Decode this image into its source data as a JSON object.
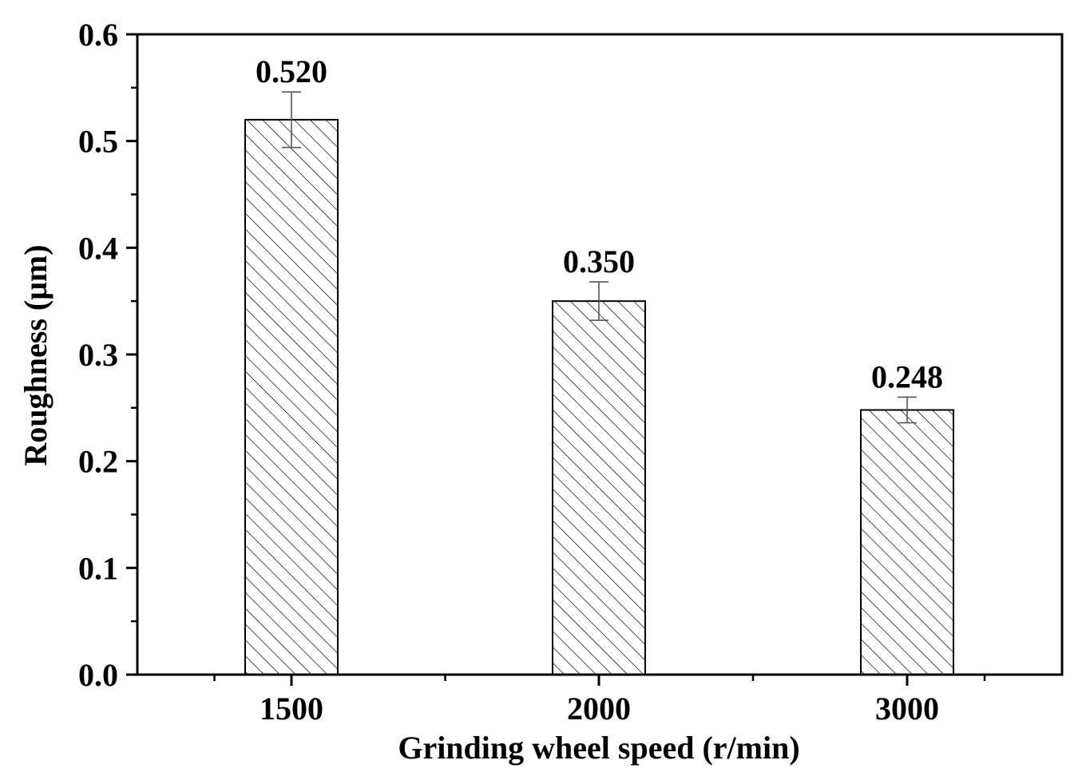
{
  "chart_data": {
    "type": "bar",
    "title": "",
    "xlabel": "Grinding wheel speed (r/min)",
    "ylabel": "Roughness (μm)",
    "categories": [
      "1500",
      "2000",
      "3000"
    ],
    "values": [
      0.52,
      0.35,
      0.248
    ],
    "data_labels": [
      "0.520",
      "0.350",
      "0.248"
    ],
    "error": [
      0.026,
      0.018,
      0.012
    ],
    "ylim": [
      0.0,
      0.6
    ],
    "yticks": [
      0.0,
      0.1,
      0.2,
      0.3,
      0.4,
      0.5,
      0.6
    ],
    "ytick_labels": [
      "0.0",
      "0.1",
      "0.2",
      "0.3",
      "0.4",
      "0.5",
      "0.6"
    ],
    "grid": false,
    "legend": "none",
    "bar_pattern": "diagonal-hatch",
    "colors": {
      "bar_fill": "#ffffff",
      "bar_stroke": "#000000",
      "hatch": "#000000",
      "error_bar": "#555555"
    }
  }
}
